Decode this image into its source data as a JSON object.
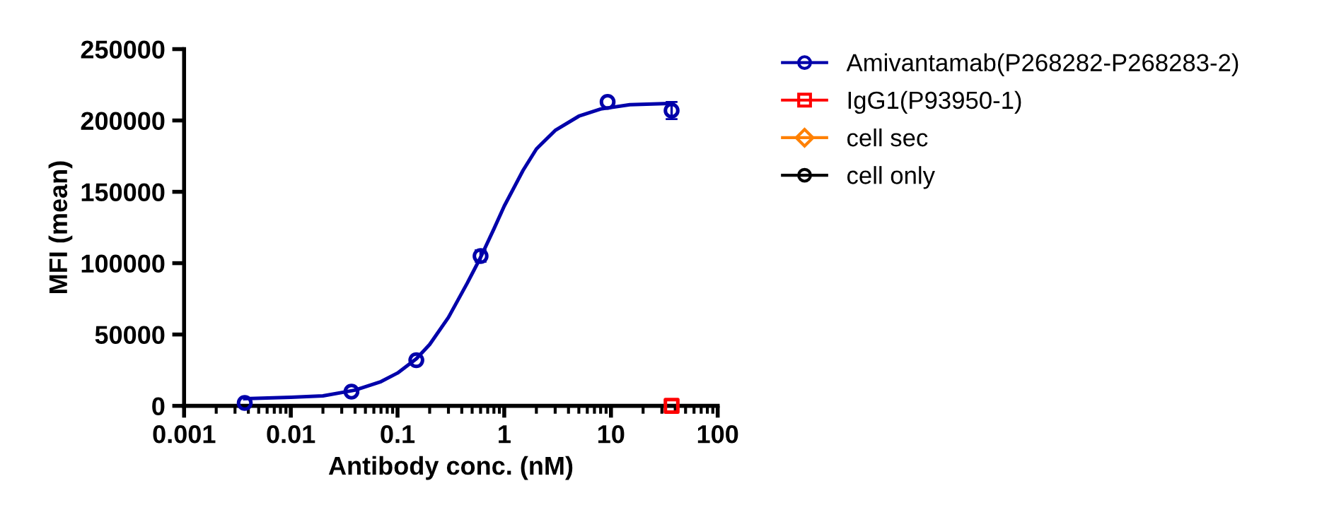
{
  "chart_data": {
    "type": "scatter",
    "xlabel": "Antibody conc. (nM)",
    "ylabel": "MFI (mean)",
    "log": "x",
    "grid": false,
    "legend": "right",
    "xlim": [
      0.001,
      100
    ],
    "xticks": [
      {
        "value": 0.001,
        "label": "0.001"
      },
      {
        "value": 0.01,
        "label": "0.01"
      },
      {
        "value": 0.1,
        "label": "0.1"
      },
      {
        "value": 1,
        "label": "1"
      },
      {
        "value": 10,
        "label": "10"
      },
      {
        "value": 100,
        "label": "100"
      }
    ],
    "ylim": [
      0,
      250000
    ],
    "yticks": [
      0,
      50000,
      100000,
      150000,
      200000,
      250000
    ],
    "series": [
      {
        "type": "line",
        "color": "#0000aa",
        "x": [
          0.0037,
          0.01,
          0.02,
          0.04,
          0.07,
          0.1,
          0.15,
          0.2,
          0.3,
          0.45,
          0.6,
          0.8,
          1,
          1.5,
          2,
          3,
          5,
          8,
          15,
          38
        ],
        "values": [
          5000,
          6000,
          7000,
          11000,
          17000,
          23000,
          33000,
          43000,
          62000,
          86000,
          104000,
          124000,
          140000,
          165000,
          180000,
          193000,
          203000,
          208000,
          211000,
          212000
        ]
      },
      {
        "name": "Amivantamab(P268282-P268283-2)",
        "color": "#0000aa",
        "marker": "circle",
        "x": [
          0.0037,
          0.037,
          0.15,
          0.6,
          9.3,
          37
        ],
        "values": [
          2000,
          10000,
          32000,
          105000,
          213000,
          207000
        ],
        "errors": [
          null,
          null,
          null,
          4000,
          null,
          6000
        ]
      },
      {
        "name": "IgG1(P93950-1)",
        "color": "#ff0000",
        "marker": "square",
        "x": [
          37
        ],
        "values": [
          0
        ]
      },
      {
        "name": "cell sec",
        "color": "#ff8000",
        "marker": "diamond"
      },
      {
        "name": "cell only",
        "color": "#000000",
        "marker": "circle"
      }
    ]
  }
}
